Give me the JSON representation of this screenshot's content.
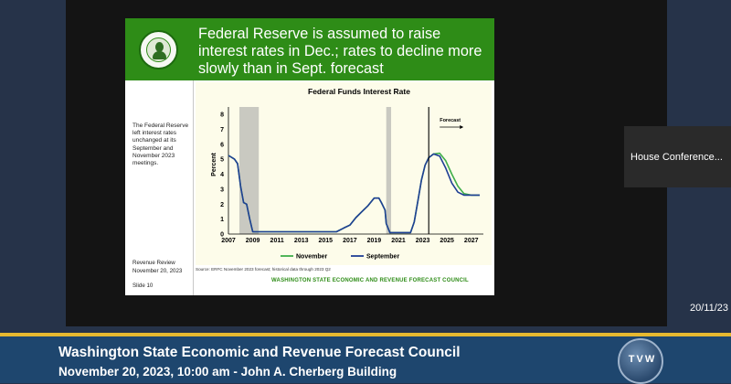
{
  "participant": {
    "name": "House Conference..."
  },
  "slide": {
    "title": "Federal Reserve is assumed to raise interest rates in Dec.; rates to decline more slowly than in Sept. forecast",
    "side_note": "The Federal Reserve left interest rates unchanged at its September and November 2023 meetings.",
    "review_title": "Revenue Review",
    "review_date": "November 20, 2023",
    "slide_number": "Slide 10",
    "source": "Source: ERFC November 2023 forecast; historical data through 2023 Q2",
    "council": "WASHINGTON STATE ECONOMIC AND REVENUE FORECAST COUNCIL"
  },
  "chart_data": {
    "type": "line",
    "title": "Federal Funds Interest Rate",
    "ylabel": "Percent",
    "xlabel": "",
    "ylim": [
      0,
      8
    ],
    "xlim": [
      2007,
      2028
    ],
    "yticks": [
      "0",
      "1",
      "2",
      "3",
      "4",
      "5",
      "6",
      "7",
      "8"
    ],
    "xticks": [
      "2007",
      "2009",
      "2011",
      "2013",
      "2015",
      "2017",
      "2019",
      "2021",
      "2023",
      "2025",
      "2027"
    ],
    "recessions": [
      [
        2007.9,
        2009.5
      ],
      [
        2020.0,
        2020.4
      ]
    ],
    "forecast_start": 2023.5,
    "forecast_label": "Forecast",
    "series": [
      {
        "name": "November",
        "color": "#3fae49",
        "x": [
          2007.0,
          2007.5,
          2007.75,
          2008.0,
          2008.25,
          2008.5,
          2008.75,
          2009.0,
          2015.9,
          2016.5,
          2017.0,
          2017.5,
          2018.0,
          2018.5,
          2019.0,
          2019.4,
          2019.6,
          2019.9,
          2020.0,
          2020.3,
          2022.0,
          2022.3,
          2022.6,
          2022.9,
          2023.2,
          2023.5,
          2023.9,
          2024.4,
          2024.9,
          2025.4,
          2025.9,
          2026.4,
          2027.0,
          2027.7
        ],
        "values": [
          5.25,
          5.0,
          4.7,
          3.2,
          2.1,
          2.0,
          1.0,
          0.15,
          0.15,
          0.4,
          0.6,
          1.1,
          1.5,
          1.9,
          2.4,
          2.4,
          2.1,
          1.6,
          0.7,
          0.1,
          0.1,
          0.8,
          2.2,
          3.6,
          4.6,
          5.1,
          5.35,
          5.4,
          4.9,
          4.0,
          3.2,
          2.7,
          2.6,
          2.6
        ]
      },
      {
        "name": "September",
        "color": "#1f3f95",
        "x": [
          2007.0,
          2007.5,
          2007.75,
          2008.0,
          2008.25,
          2008.5,
          2008.75,
          2009.0,
          2015.9,
          2016.5,
          2017.0,
          2017.5,
          2018.0,
          2018.5,
          2019.0,
          2019.4,
          2019.6,
          2019.9,
          2020.0,
          2020.3,
          2022.0,
          2022.3,
          2022.6,
          2022.9,
          2023.2,
          2023.5,
          2023.9,
          2024.4,
          2024.9,
          2025.4,
          2025.9,
          2026.4,
          2027.0,
          2027.7
        ],
        "values": [
          5.25,
          5.0,
          4.7,
          3.2,
          2.1,
          2.0,
          1.0,
          0.15,
          0.15,
          0.4,
          0.6,
          1.1,
          1.5,
          1.9,
          2.4,
          2.4,
          2.1,
          1.6,
          0.7,
          0.1,
          0.1,
          0.8,
          2.2,
          3.6,
          4.6,
          5.1,
          5.35,
          5.2,
          4.4,
          3.4,
          2.8,
          2.6,
          2.6,
          2.6
        ]
      }
    ],
    "legend_position": "bottom"
  },
  "timestamp": "20/11/23",
  "lower_third": {
    "title": "Washington State Economic and Revenue Forecast Council",
    "subtitle": "November 20, 2023, 10:00 am - John A. Cherberg Building"
  },
  "logo": {
    "text": "TVW"
  }
}
